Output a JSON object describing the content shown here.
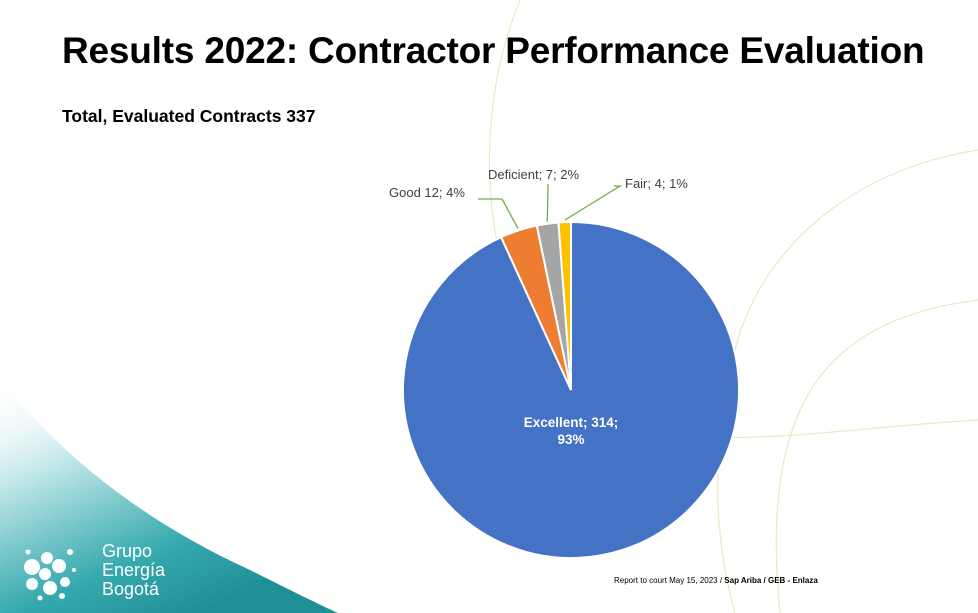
{
  "slide": {
    "title": "Results 2022: Contractor Performance Evaluation",
    "subtitle": "Total, Evaluated Contracts 337"
  },
  "chart_data": {
    "type": "pie",
    "title": "",
    "start_angle_deg": 0,
    "direction": "clockwise",
    "slices": [
      {
        "label": "Excellent",
        "value": 314,
        "percent": "93%",
        "text": "Excellent; 314;",
        "text2": "93%",
        "color": "#4472C4",
        "label_position": "inside"
      },
      {
        "label": "Good",
        "value": 12,
        "percent": "4%",
        "text": "Good 12; 4%",
        "color": "#ED7D31",
        "label_position": "outside"
      },
      {
        "label": "Deficient",
        "value": 7,
        "percent": "2%",
        "text": "Deficient; 7; 2%",
        "color": "#A5A5A5",
        "label_position": "outside"
      },
      {
        "label": "Fair",
        "value": 4,
        "percent": "1%",
        "text": "Fair; 4; 1%",
        "color": "#FFC000",
        "label_position": "outside"
      }
    ],
    "leader_line_color": "#70AD47"
  },
  "logo": {
    "line1": "Grupo",
    "line2": "Energía",
    "line3": "Bogotá"
  },
  "footer": {
    "note": "Report to court May 15, 2023 / ",
    "source": " Sap Ariba / GEB - Enlaza"
  },
  "colors": {
    "teal": "#2AA3A8",
    "decor_line": "#EEE6C4"
  }
}
